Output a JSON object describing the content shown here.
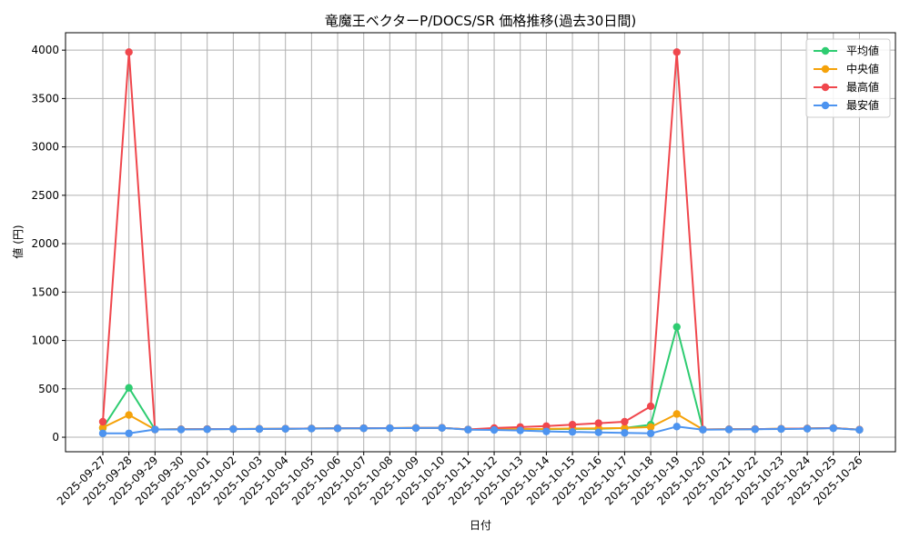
{
  "chart_data": {
    "type": "line",
    "title": "竜魔王ベクターP/DOCS/SR 価格推移(過去30日間)",
    "xlabel": "日付",
    "ylabel": "値 (円)",
    "ylim": [
      -150,
      4180
    ],
    "yticks": [
      0,
      500,
      1000,
      1500,
      2000,
      2500,
      3000,
      3500,
      4000
    ],
    "grid": true,
    "legend_position": "top-right",
    "x": [
      "2025-09-27",
      "2025-09-28",
      "2025-09-29",
      "2025-09-30",
      "2025-10-01",
      "2025-10-02",
      "2025-10-03",
      "2025-10-04",
      "2025-10-05",
      "2025-10-06",
      "2025-10-07",
      "2025-10-08",
      "2025-10-09",
      "2025-10-10",
      "2025-10-11",
      "2025-10-12",
      "2025-10-13",
      "2025-10-14",
      "2025-10-15",
      "2025-10-16",
      "2025-10-17",
      "2025-10-18",
      "2025-10-19",
      "2025-10-20",
      "2025-10-21",
      "2025-10-22",
      "2025-10-23",
      "2025-10-24",
      "2025-10-25",
      "2025-10-26"
    ],
    "series": [
      {
        "name": "平均値",
        "color": "#2ecc71",
        "values": [
          95,
          510,
          80,
          82,
          84,
          85,
          86,
          88,
          90,
          92,
          93,
          94,
          96,
          97,
          80,
          82,
          83,
          84,
          86,
          88,
          95,
          130,
          1140,
          80,
          82,
          84,
          87,
          90,
          95,
          78
        ]
      },
      {
        "name": "中央値",
        "color": "#f5a20a",
        "values": [
          100,
          230,
          80,
          82,
          84,
          85,
          86,
          88,
          90,
          92,
          93,
          94,
          96,
          97,
          80,
          82,
          84,
          86,
          90,
          92,
          95,
          105,
          240,
          80,
          82,
          84,
          87,
          90,
          95,
          78
        ]
      },
      {
        "name": "最高値",
        "color": "#f0474d",
        "values": [
          160,
          3980,
          80,
          82,
          84,
          85,
          86,
          88,
          90,
          92,
          93,
          94,
          96,
          97,
          80,
          95,
          105,
          115,
          130,
          145,
          160,
          320,
          3980,
          80,
          82,
          84,
          87,
          90,
          95,
          78
        ]
      },
      {
        "name": "最安値",
        "color": "#4d94f0",
        "values": [
          40,
          40,
          80,
          80,
          82,
          84,
          85,
          87,
          89,
          91,
          92,
          93,
          95,
          96,
          78,
          75,
          70,
          60,
          55,
          50,
          45,
          40,
          110,
          78,
          80,
          82,
          85,
          88,
          93,
          76
        ]
      }
    ]
  }
}
